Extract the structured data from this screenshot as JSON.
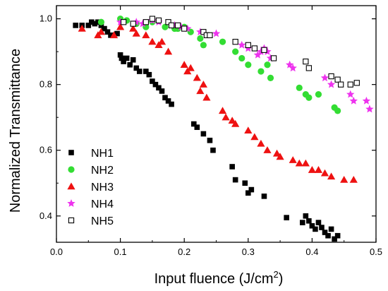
{
  "chart_data": {
    "type": "scatter",
    "xlabel": "Input fluence (J/cm",
    "xlabel_superscript": "2",
    "xlabel_suffix": ")",
    "ylabel": "Normalized Transmittance",
    "xlim": [
      0.0,
      0.5
    ],
    "ylim": [
      0.32,
      1.04
    ],
    "xticks": [
      "0.0",
      "0.1",
      "0.2",
      "0.3",
      "0.4",
      "0.5"
    ],
    "yticks": [
      "0.4",
      "0.6",
      "0.8",
      "1.0"
    ],
    "grid": false,
    "legend_position": "bottom-left",
    "series": [
      {
        "name": "NH1",
        "marker": "filled-square",
        "color": "#000000",
        "points": [
          [
            0.03,
            0.98
          ],
          [
            0.04,
            0.98
          ],
          [
            0.05,
            0.98
          ],
          [
            0.055,
            0.99
          ],
          [
            0.06,
            0.985
          ],
          [
            0.065,
            0.99
          ],
          [
            0.07,
            0.98
          ],
          [
            0.075,
            0.97
          ],
          [
            0.08,
            0.96
          ],
          [
            0.085,
            0.95
          ],
          [
            0.09,
            0.95
          ],
          [
            0.095,
            0.955
          ],
          [
            0.1,
            0.89
          ],
          [
            0.102,
            0.88
          ],
          [
            0.105,
            0.87
          ],
          [
            0.11,
            0.88
          ],
          [
            0.115,
            0.86
          ],
          [
            0.12,
            0.875
          ],
          [
            0.125,
            0.85
          ],
          [
            0.13,
            0.84
          ],
          [
            0.14,
            0.84
          ],
          [
            0.145,
            0.83
          ],
          [
            0.15,
            0.81
          ],
          [
            0.155,
            0.8
          ],
          [
            0.16,
            0.79
          ],
          [
            0.165,
            0.78
          ],
          [
            0.17,
            0.76
          ],
          [
            0.175,
            0.75
          ],
          [
            0.18,
            0.74
          ],
          [
            0.215,
            0.68
          ],
          [
            0.22,
            0.67
          ],
          [
            0.23,
            0.65
          ],
          [
            0.24,
            0.63
          ],
          [
            0.245,
            0.6
          ],
          [
            0.275,
            0.55
          ],
          [
            0.28,
            0.51
          ],
          [
            0.295,
            0.5
          ],
          [
            0.3,
            0.47
          ],
          [
            0.305,
            0.48
          ],
          [
            0.325,
            0.46
          ],
          [
            0.36,
            0.395
          ],
          [
            0.385,
            0.38
          ],
          [
            0.39,
            0.4
          ],
          [
            0.395,
            0.385
          ],
          [
            0.4,
            0.37
          ],
          [
            0.405,
            0.36
          ],
          [
            0.41,
            0.38
          ],
          [
            0.415,
            0.365
          ],
          [
            0.42,
            0.35
          ],
          [
            0.425,
            0.34
          ],
          [
            0.43,
            0.36
          ],
          [
            0.435,
            0.33
          ],
          [
            0.44,
            0.34
          ]
        ]
      },
      {
        "name": "NH2",
        "marker": "filled-circle",
        "color": "#33dd33",
        "points": [
          [
            0.07,
            0.99
          ],
          [
            0.1,
            1.0
          ],
          [
            0.11,
            0.995
          ],
          [
            0.125,
            0.985
          ],
          [
            0.14,
            0.975
          ],
          [
            0.15,
            0.99
          ],
          [
            0.17,
            0.975
          ],
          [
            0.185,
            0.97
          ],
          [
            0.19,
            0.97
          ],
          [
            0.2,
            0.975
          ],
          [
            0.21,
            0.96
          ],
          [
            0.225,
            0.94
          ],
          [
            0.23,
            0.92
          ],
          [
            0.26,
            0.93
          ],
          [
            0.28,
            0.9
          ],
          [
            0.29,
            0.88
          ],
          [
            0.3,
            0.86
          ],
          [
            0.32,
            0.84
          ],
          [
            0.33,
            0.86
          ],
          [
            0.335,
            0.82
          ],
          [
            0.38,
            0.79
          ],
          [
            0.39,
            0.77
          ],
          [
            0.395,
            0.76
          ],
          [
            0.41,
            0.77
          ],
          [
            0.435,
            0.73
          ],
          [
            0.44,
            0.72
          ]
        ]
      },
      {
        "name": "NH3",
        "marker": "filled-triangle",
        "color": "#ee1111",
        "points": [
          [
            0.04,
            0.97
          ],
          [
            0.065,
            0.95
          ],
          [
            0.07,
            0.96
          ],
          [
            0.09,
            0.95
          ],
          [
            0.1,
            0.975
          ],
          [
            0.12,
            0.97
          ],
          [
            0.125,
            0.955
          ],
          [
            0.14,
            0.95
          ],
          [
            0.15,
            0.93
          ],
          [
            0.16,
            0.92
          ],
          [
            0.165,
            0.93
          ],
          [
            0.175,
            0.9
          ],
          [
            0.2,
            0.86
          ],
          [
            0.205,
            0.84
          ],
          [
            0.21,
            0.85
          ],
          [
            0.22,
            0.82
          ],
          [
            0.225,
            0.78
          ],
          [
            0.23,
            0.8
          ],
          [
            0.235,
            0.76
          ],
          [
            0.26,
            0.72
          ],
          [
            0.265,
            0.7
          ],
          [
            0.275,
            0.69
          ],
          [
            0.28,
            0.68
          ],
          [
            0.3,
            0.66
          ],
          [
            0.31,
            0.64
          ],
          [
            0.32,
            0.62
          ],
          [
            0.33,
            0.6
          ],
          [
            0.345,
            0.59
          ],
          [
            0.35,
            0.58
          ],
          [
            0.37,
            0.57
          ],
          [
            0.38,
            0.56
          ],
          [
            0.39,
            0.56
          ],
          [
            0.4,
            0.54
          ],
          [
            0.41,
            0.54
          ],
          [
            0.42,
            0.53
          ],
          [
            0.43,
            0.52
          ],
          [
            0.45,
            0.51
          ],
          [
            0.465,
            0.51
          ]
        ]
      },
      {
        "name": "NH4",
        "marker": "star",
        "color": "#ee33ee",
        "points": [
          [
            0.1,
            0.99
          ],
          [
            0.125,
            0.99
          ],
          [
            0.135,
            0.985
          ],
          [
            0.15,
            0.995
          ],
          [
            0.16,
            0.99
          ],
          [
            0.185,
            0.98
          ],
          [
            0.195,
            0.975
          ],
          [
            0.205,
            0.97
          ],
          [
            0.225,
            0.96
          ],
          [
            0.25,
            0.955
          ],
          [
            0.29,
            0.92
          ],
          [
            0.3,
            0.91
          ],
          [
            0.315,
            0.89
          ],
          [
            0.32,
            0.9
          ],
          [
            0.325,
            0.91
          ],
          [
            0.33,
            0.9
          ],
          [
            0.335,
            0.88
          ],
          [
            0.365,
            0.86
          ],
          [
            0.37,
            0.85
          ],
          [
            0.42,
            0.82
          ],
          [
            0.43,
            0.8
          ],
          [
            0.46,
            0.77
          ],
          [
            0.465,
            0.75
          ],
          [
            0.485,
            0.75
          ],
          [
            0.49,
            0.725
          ]
        ]
      },
      {
        "name": "NH5",
        "marker": "open-square",
        "color": "#000000",
        "points": [
          [
            0.105,
            0.99
          ],
          [
            0.12,
            0.985
          ],
          [
            0.14,
            0.99
          ],
          [
            0.15,
            1.0
          ],
          [
            0.16,
            0.995
          ],
          [
            0.175,
            0.99
          ],
          [
            0.18,
            0.98
          ],
          [
            0.19,
            0.98
          ],
          [
            0.2,
            0.97
          ],
          [
            0.23,
            0.96
          ],
          [
            0.235,
            0.95
          ],
          [
            0.24,
            0.95
          ],
          [
            0.28,
            0.93
          ],
          [
            0.3,
            0.92
          ],
          [
            0.31,
            0.91
          ],
          [
            0.325,
            0.905
          ],
          [
            0.34,
            0.88
          ],
          [
            0.39,
            0.87
          ],
          [
            0.395,
            0.85
          ],
          [
            0.43,
            0.825
          ],
          [
            0.44,
            0.815
          ],
          [
            0.445,
            0.8
          ],
          [
            0.46,
            0.8
          ],
          [
            0.47,
            0.805
          ]
        ]
      }
    ]
  }
}
